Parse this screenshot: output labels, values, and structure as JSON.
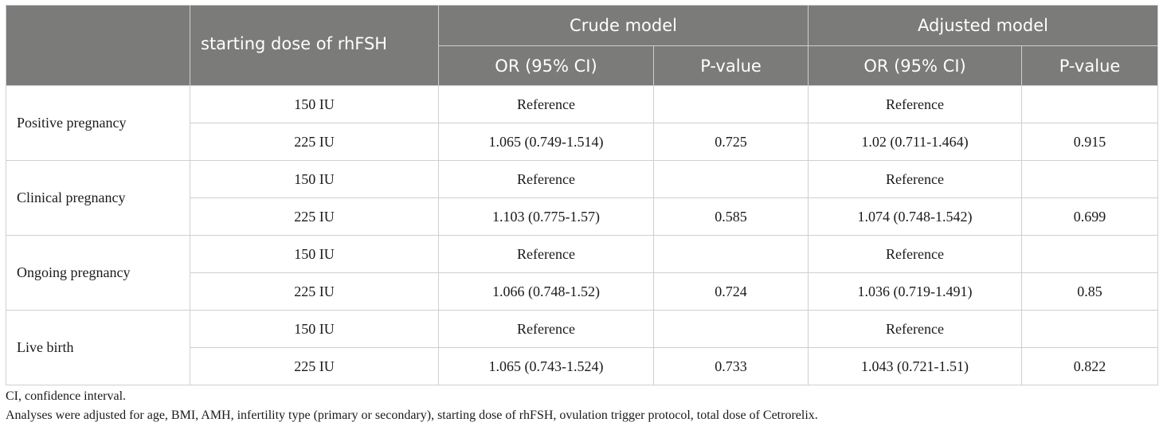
{
  "table": {
    "headers": {
      "dose_col": "starting dose of rhFSH",
      "crude": "Crude model",
      "adjusted": "Adjusted model",
      "or_ci": "OR (95% CI)",
      "p_value": "P-value"
    },
    "groups": [
      {
        "outcome": "Positive pregnancy",
        "rows": [
          {
            "dose": "150 IU",
            "crude_or": "Reference",
            "crude_p": "",
            "adj_or": "Reference",
            "adj_p": ""
          },
          {
            "dose": "225 IU",
            "crude_or": "1.065 (0.749-1.514)",
            "crude_p": "0.725",
            "adj_or": "1.02 (0.711-1.464)",
            "adj_p": "0.915"
          }
        ]
      },
      {
        "outcome": "Clinical pregnancy",
        "rows": [
          {
            "dose": "150 IU",
            "crude_or": "Reference",
            "crude_p": "",
            "adj_or": "Reference",
            "adj_p": ""
          },
          {
            "dose": "225 IU",
            "crude_or": "1.103 (0.775-1.57)",
            "crude_p": "0.585",
            "adj_or": "1.074 (0.748-1.542)",
            "adj_p": "0.699"
          }
        ]
      },
      {
        "outcome": "Ongoing pregnancy",
        "rows": [
          {
            "dose": "150 IU",
            "crude_or": "Reference",
            "crude_p": "",
            "adj_or": "Reference",
            "adj_p": ""
          },
          {
            "dose": "225 IU",
            "crude_or": "1.066 (0.748-1.52)",
            "crude_p": "0.724",
            "adj_or": "1.036 (0.719-1.491)",
            "adj_p": "0.85"
          }
        ]
      },
      {
        "outcome": "Live birth",
        "rows": [
          {
            "dose": "150 IU",
            "crude_or": "Reference",
            "crude_p": "",
            "adj_or": "Reference",
            "adj_p": ""
          },
          {
            "dose": "225 IU",
            "crude_or": "1.065 (0.743-1.524)",
            "crude_p": "0.733",
            "adj_or": "1.043 (0.721-1.51)",
            "adj_p": "0.822"
          }
        ]
      }
    ]
  },
  "footnotes": {
    "abbrev": "CI, confidence interval.",
    "adjustment": "Analyses were adjusted for age, BMI, AMH, infertility type (primary or secondary), starting dose of rhFSH, ovulation trigger protocol, total dose of Cetrorelix."
  },
  "colors": {
    "header_bg": "#7b7b7a",
    "header_text": "#ffffff",
    "border": "#cfcfcf"
  }
}
